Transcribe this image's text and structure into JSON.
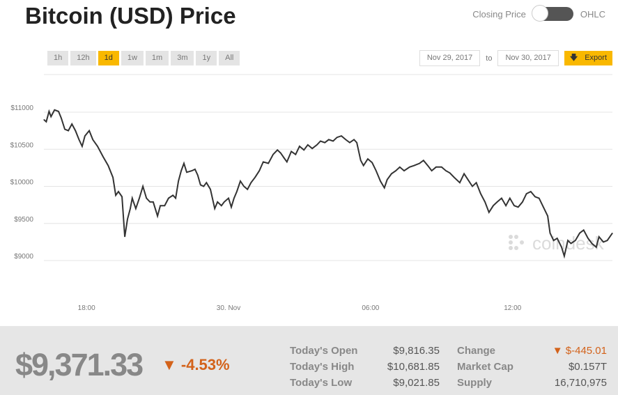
{
  "header": {
    "title": "Bitcoin (USD) Price",
    "toggle_left": "Closing Price",
    "toggle_right": "OHLC"
  },
  "ranges": [
    {
      "label": "1h"
    },
    {
      "label": "12h"
    },
    {
      "label": "1d",
      "active": true
    },
    {
      "label": "1w"
    },
    {
      "label": "1m"
    },
    {
      "label": "3m"
    },
    {
      "label": "1y"
    },
    {
      "label": "All"
    }
  ],
  "date_range": {
    "from": "Nov 29, 2017",
    "to_label": "to",
    "to": "Nov 30, 2017",
    "export_label": "Export"
  },
  "watermark": "coindesk",
  "colors": {
    "accent": "#f9b800",
    "down": "#d3621a",
    "line": "#333333"
  },
  "chart_data": {
    "type": "line",
    "title": "",
    "xlabel": "",
    "ylabel": "",
    "ylim": [
      8800,
      11300
    ],
    "xlim": [
      "2017-11-29T16:12",
      "2017-11-30T16:13"
    ],
    "yticks": [
      {
        "v": 11000,
        "label": "$11000"
      },
      {
        "v": 10500,
        "label": "$10500"
      },
      {
        "v": 10000,
        "label": "$10000"
      },
      {
        "v": 9500,
        "label": "$9500"
      },
      {
        "v": 9000,
        "label": "$9000"
      }
    ],
    "xticks": [
      {
        "t": "2017-11-29T18:00",
        "label": "18:00"
      },
      {
        "t": "2017-11-30T00:00",
        "label": "30. Nov"
      },
      {
        "t": "2017-11-30T06:00",
        "label": "06:00"
      },
      {
        "t": "2017-11-30T12:00",
        "label": "12:00"
      }
    ],
    "grid": true,
    "points": [
      [
        "2017-11-29T16:12",
        10900
      ],
      [
        "2017-11-29T16:18",
        10870
      ],
      [
        "2017-11-29T16:25",
        11010
      ],
      [
        "2017-11-29T16:30",
        10940
      ],
      [
        "2017-11-29T16:39",
        11030
      ],
      [
        "2017-11-29T16:49",
        11010
      ],
      [
        "2017-11-29T16:56",
        10920
      ],
      [
        "2017-11-29T17:05",
        10770
      ],
      [
        "2017-11-29T17:14",
        10750
      ],
      [
        "2017-11-29T17:23",
        10840
      ],
      [
        "2017-11-29T17:32",
        10750
      ],
      [
        "2017-11-29T17:41",
        10630
      ],
      [
        "2017-11-29T17:49",
        10540
      ],
      [
        "2017-11-29T17:56",
        10680
      ],
      [
        "2017-11-29T18:07",
        10750
      ],
      [
        "2017-11-29T18:16",
        10630
      ],
      [
        "2017-11-29T18:28",
        10540
      ],
      [
        "2017-11-29T18:42",
        10400
      ],
      [
        "2017-11-29T18:55",
        10280
      ],
      [
        "2017-11-29T19:07",
        10120
      ],
      [
        "2017-11-29T19:14",
        9880
      ],
      [
        "2017-11-29T19:21",
        9930
      ],
      [
        "2017-11-29T19:30",
        9860
      ],
      [
        "2017-11-29T19:37",
        9320
      ],
      [
        "2017-11-29T19:44",
        9560
      ],
      [
        "2017-11-29T19:51",
        9700
      ],
      [
        "2017-11-29T19:56",
        9840
      ],
      [
        "2017-11-29T20:05",
        9700
      ],
      [
        "2017-11-29T20:14",
        9840
      ],
      [
        "2017-11-29T20:23",
        10000
      ],
      [
        "2017-11-29T20:32",
        9840
      ],
      [
        "2017-11-29T20:41",
        9790
      ],
      [
        "2017-11-29T20:49",
        9790
      ],
      [
        "2017-11-29T21:00",
        9600
      ],
      [
        "2017-11-29T21:07",
        9740
      ],
      [
        "2017-11-29T21:18",
        9740
      ],
      [
        "2017-11-29T21:28",
        9840
      ],
      [
        "2017-11-29T21:39",
        9880
      ],
      [
        "2017-11-29T21:46",
        9840
      ],
      [
        "2017-11-29T21:53",
        10070
      ],
      [
        "2017-11-29T22:00",
        10210
      ],
      [
        "2017-11-29T22:07",
        10310
      ],
      [
        "2017-11-29T22:14",
        10190
      ],
      [
        "2017-11-29T22:27",
        10210
      ],
      [
        "2017-11-29T22:35",
        10230
      ],
      [
        "2017-11-29T22:42",
        10150
      ],
      [
        "2017-11-29T22:49",
        10020
      ],
      [
        "2017-11-29T22:57",
        10000
      ],
      [
        "2017-11-29T23:04",
        10050
      ],
      [
        "2017-11-29T23:14",
        9960
      ],
      [
        "2017-11-29T23:25",
        9700
      ],
      [
        "2017-11-29T23:32",
        9790
      ],
      [
        "2017-11-29T23:42",
        9740
      ],
      [
        "2017-11-29T23:49",
        9790
      ],
      [
        "2017-11-30T00:00",
        9840
      ],
      [
        "2017-11-30T00:07",
        9720
      ],
      [
        "2017-11-30T00:14",
        9840
      ],
      [
        "2017-11-30T00:21",
        9930
      ],
      [
        "2017-11-30T00:30",
        10070
      ],
      [
        "2017-11-30T00:39",
        10000
      ],
      [
        "2017-11-30T00:48",
        9960
      ],
      [
        "2017-11-30T00:57",
        10050
      ],
      [
        "2017-11-30T01:07",
        10120
      ],
      [
        "2017-11-30T01:18",
        10210
      ],
      [
        "2017-11-30T01:28",
        10330
      ],
      [
        "2017-11-30T01:41",
        10310
      ],
      [
        "2017-11-30T01:53",
        10430
      ],
      [
        "2017-11-30T02:04",
        10490
      ],
      [
        "2017-11-30T02:12",
        10450
      ],
      [
        "2017-11-30T02:21",
        10380
      ],
      [
        "2017-11-30T02:28",
        10330
      ],
      [
        "2017-11-30T02:39",
        10470
      ],
      [
        "2017-11-30T02:50",
        10430
      ],
      [
        "2017-11-30T03:00",
        10540
      ],
      [
        "2017-11-30T03:11",
        10490
      ],
      [
        "2017-11-30T03:21",
        10560
      ],
      [
        "2017-11-30T03:32",
        10510
      ],
      [
        "2017-11-30T03:44",
        10560
      ],
      [
        "2017-11-30T03:53",
        10610
      ],
      [
        "2017-11-30T04:04",
        10590
      ],
      [
        "2017-11-30T04:14",
        10630
      ],
      [
        "2017-11-30T04:25",
        10610
      ],
      [
        "2017-11-30T04:35",
        10660
      ],
      [
        "2017-11-30T04:46",
        10680
      ],
      [
        "2017-11-30T04:57",
        10630
      ],
      [
        "2017-11-30T05:07",
        10590
      ],
      [
        "2017-11-30T05:18",
        10630
      ],
      [
        "2017-11-30T05:25",
        10590
      ],
      [
        "2017-11-30T05:35",
        10350
      ],
      [
        "2017-11-30T05:42",
        10280
      ],
      [
        "2017-11-30T05:53",
        10370
      ],
      [
        "2017-11-30T06:04",
        10320
      ],
      [
        "2017-11-30T06:14",
        10210
      ],
      [
        "2017-11-30T06:25",
        10070
      ],
      [
        "2017-11-30T06:35",
        9980
      ],
      [
        "2017-11-30T06:42",
        10090
      ],
      [
        "2017-11-30T06:53",
        10170
      ],
      [
        "2017-11-30T07:04",
        10210
      ],
      [
        "2017-11-30T07:14",
        10260
      ],
      [
        "2017-11-30T07:25",
        10210
      ],
      [
        "2017-11-30T07:39",
        10260
      ],
      [
        "2017-11-30T07:50",
        10280
      ],
      [
        "2017-11-30T08:04",
        10310
      ],
      [
        "2017-11-30T08:14",
        10350
      ],
      [
        "2017-11-30T08:25",
        10280
      ],
      [
        "2017-11-30T08:35",
        10210
      ],
      [
        "2017-11-30T08:46",
        10260
      ],
      [
        "2017-11-30T09:00",
        10260
      ],
      [
        "2017-11-30T09:11",
        10210
      ],
      [
        "2017-11-30T09:21",
        10180
      ],
      [
        "2017-11-30T09:32",
        10120
      ],
      [
        "2017-11-30T09:46",
        10050
      ],
      [
        "2017-11-30T09:57",
        10170
      ],
      [
        "2017-11-30T10:07",
        10090
      ],
      [
        "2017-11-30T10:18",
        10000
      ],
      [
        "2017-11-30T10:28",
        10050
      ],
      [
        "2017-11-30T10:39",
        9900
      ],
      [
        "2017-11-30T10:50",
        9790
      ],
      [
        "2017-11-30T11:00",
        9650
      ],
      [
        "2017-11-30T11:11",
        9740
      ],
      [
        "2017-11-30T11:21",
        9790
      ],
      [
        "2017-11-30T11:32",
        9840
      ],
      [
        "2017-11-30T11:43",
        9740
      ],
      [
        "2017-11-30T11:53",
        9840
      ],
      [
        "2017-11-30T12:04",
        9740
      ],
      [
        "2017-11-30T12:14",
        9720
      ],
      [
        "2017-11-30T12:25",
        9790
      ],
      [
        "2017-11-30T12:35",
        9900
      ],
      [
        "2017-11-30T12:46",
        9930
      ],
      [
        "2017-11-30T12:57",
        9860
      ],
      [
        "2017-11-30T13:07",
        9840
      ],
      [
        "2017-11-30T13:18",
        9720
      ],
      [
        "2017-11-30T13:29",
        9600
      ],
      [
        "2017-11-30T13:35",
        9370
      ],
      [
        "2017-11-30T13:44",
        9270
      ],
      [
        "2017-11-30T13:53",
        9300
      ],
      [
        "2017-11-30T14:04",
        9180
      ],
      [
        "2017-11-30T14:11",
        9060
      ],
      [
        "2017-11-30T14:20",
        9270
      ],
      [
        "2017-11-30T14:28",
        9230
      ],
      [
        "2017-11-30T14:39",
        9270
      ],
      [
        "2017-11-30T14:50",
        9370
      ],
      [
        "2017-11-30T15:00",
        9410
      ],
      [
        "2017-11-30T15:11",
        9300
      ],
      [
        "2017-11-30T15:21",
        9230
      ],
      [
        "2017-11-30T15:32",
        9180
      ],
      [
        "2017-11-30T15:39",
        9320
      ],
      [
        "2017-11-30T15:50",
        9250
      ],
      [
        "2017-11-30T16:00",
        9270
      ],
      [
        "2017-11-30T16:13",
        9370
      ]
    ]
  },
  "footer": {
    "price": "$9,371.33",
    "change_pct": "▼ -4.53%",
    "stats_left": [
      {
        "label": "Today's Open",
        "value": "$9,816.35"
      },
      {
        "label": "Today's High",
        "value": "$10,681.85"
      },
      {
        "label": "Today's Low",
        "value": "$9,021.85"
      }
    ],
    "stats_right": [
      {
        "label": "Change",
        "value": "▼ $-445.01"
      },
      {
        "label": "Market Cap",
        "value": "$0.157T"
      },
      {
        "label": "Supply",
        "value": "16,710,975"
      }
    ]
  }
}
